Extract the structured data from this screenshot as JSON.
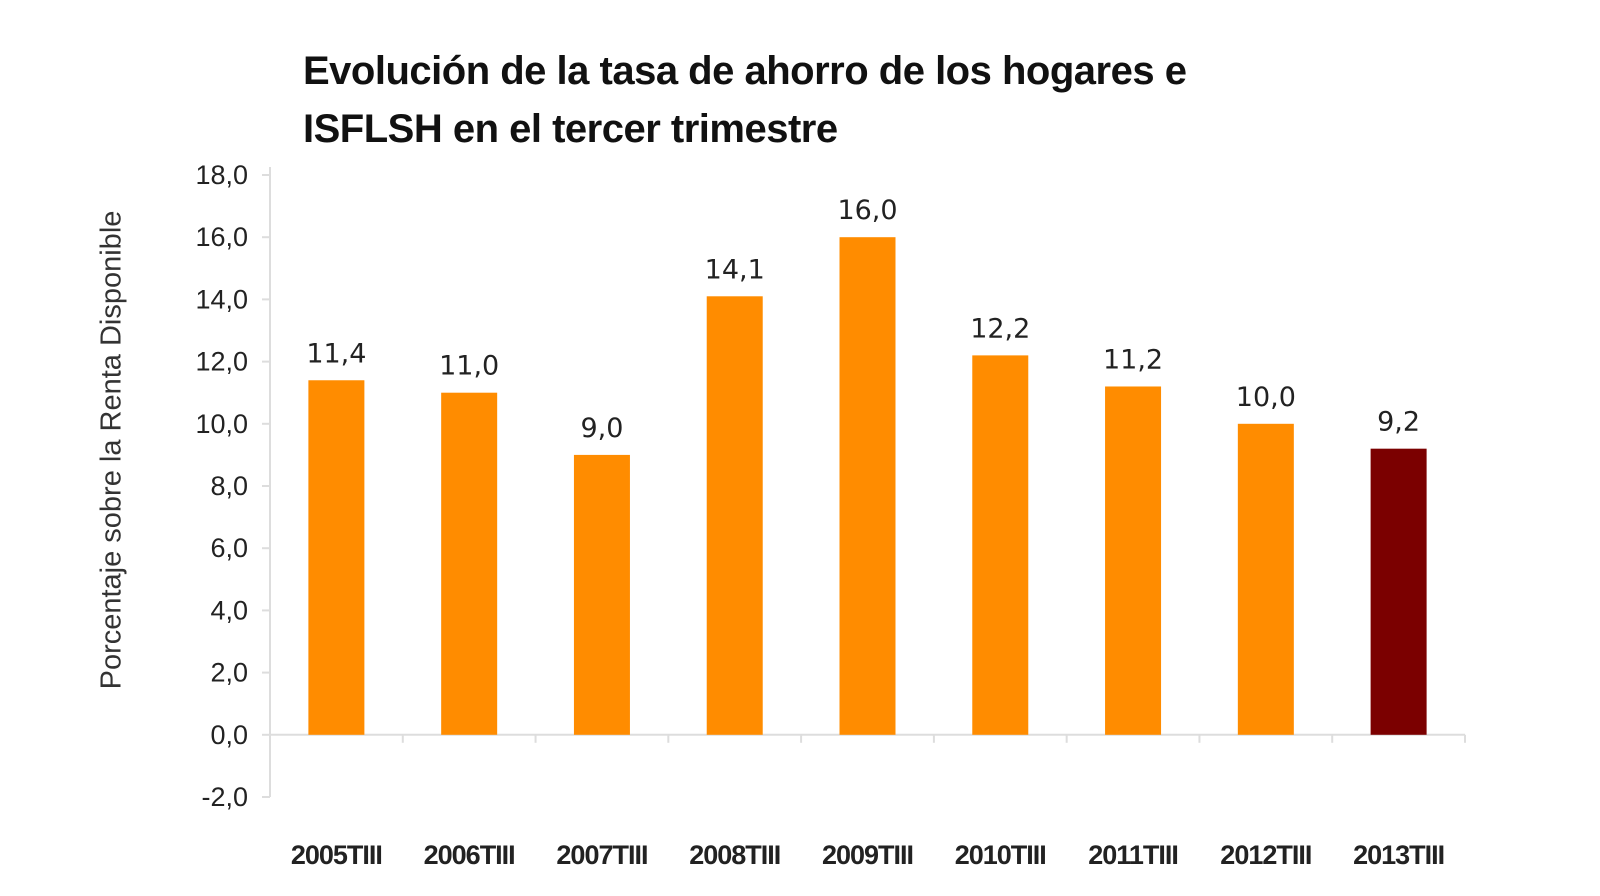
{
  "chart_data": {
    "type": "bar",
    "title_lines": [
      "Evolución de la tasa de ahorro de los hogares e",
      "ISFLSH en el tercer trimestre"
    ],
    "xlabel": "",
    "ylabel": "Porcentaje sobre la Renta Disponible",
    "categories": [
      "2005TIII",
      "2006TIII",
      "2007TIII",
      "2008TIII",
      "2009TIII",
      "2010TIII",
      "2011TIII",
      "2012TIII",
      "2013TIII"
    ],
    "values": [
      11.4,
      11.0,
      9.0,
      14.1,
      16.0,
      12.2,
      11.2,
      10.0,
      9.2
    ],
    "data_labels": [
      "11,4",
      "11,0",
      "9,0",
      "14,1",
      "16,0",
      "12,2",
      "11,2",
      "10,0",
      "9,2"
    ],
    "ylim": [
      -2,
      18
    ],
    "yticks": [
      -2,
      0,
      2,
      4,
      6,
      8,
      10,
      12,
      14,
      16,
      18
    ],
    "ytick_labels": [
      "-2,0",
      "0,0",
      "2,0",
      "4,0",
      "6,0",
      "8,0",
      "10,0",
      "12,0",
      "14,0",
      "16,0",
      "18,0"
    ],
    "grid": false,
    "legend": "none",
    "colors": {
      "default": "#FF8C00",
      "highlight": "#7B0000"
    },
    "highlight_index": 8
  }
}
